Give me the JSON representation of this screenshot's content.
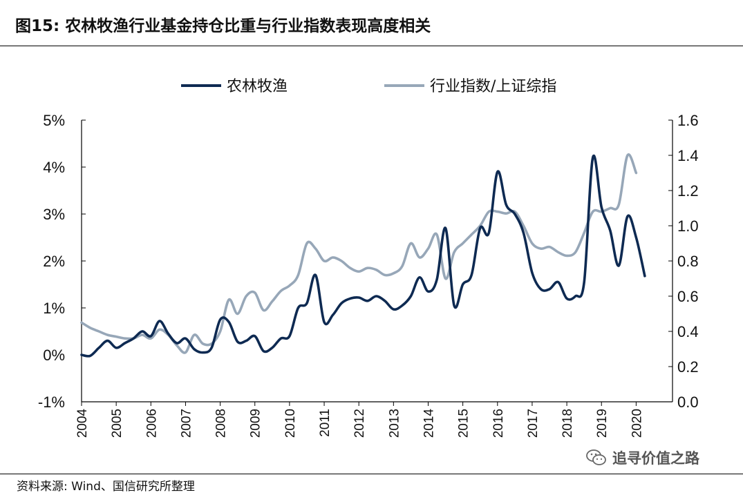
{
  "figure": {
    "title": "图15:  农林牧渔行业基金持仓比重与行业指数表现高度相关",
    "source": "资料来源: Wind、国信研究所整理",
    "watermark": "追寻价值之路",
    "watermark_icon": "wechat-icon"
  },
  "colors": {
    "series_primary": "#0e2a52",
    "series_secondary": "#97a7b8",
    "axis": "#000000"
  },
  "chart_data": {
    "type": "line",
    "legend_position": "top",
    "grid": false,
    "x_range": [
      2004.0,
      2020.75
    ],
    "x_tick_labels": [
      "2004",
      "2005",
      "2006",
      "2007",
      "2008",
      "2009",
      "2010",
      "2011",
      "2012",
      "2013",
      "2014",
      "2015",
      "2016",
      "2017",
      "2018",
      "2019",
      "2020"
    ],
    "y_left": {
      "range": [
        -1,
        5
      ],
      "tick_labels": [
        "-1%",
        "0%",
        "1%",
        "2%",
        "3%",
        "4%",
        "5%"
      ]
    },
    "y_right": {
      "range": [
        0.0,
        1.6
      ],
      "tick_labels": [
        "0.0",
        "0.2",
        "0.4",
        "0.6",
        "0.8",
        "1.0",
        "1.2",
        "1.4",
        "1.6"
      ]
    },
    "series": [
      {
        "name": "农林牧渔",
        "axis": "left",
        "points": [
          [
            2004.0,
            0.0
          ],
          [
            2004.25,
            -0.02
          ],
          [
            2004.5,
            0.15
          ],
          [
            2004.75,
            0.3
          ],
          [
            2005.0,
            0.15
          ],
          [
            2005.25,
            0.25
          ],
          [
            2005.5,
            0.35
          ],
          [
            2005.75,
            0.5
          ],
          [
            2006.0,
            0.4
          ],
          [
            2006.25,
            0.72
          ],
          [
            2006.5,
            0.45
          ],
          [
            2006.75,
            0.25
          ],
          [
            2007.0,
            0.35
          ],
          [
            2007.25,
            0.12
          ],
          [
            2007.5,
            0.05
          ],
          [
            2007.75,
            0.15
          ],
          [
            2008.0,
            0.75
          ],
          [
            2008.25,
            0.7
          ],
          [
            2008.5,
            0.28
          ],
          [
            2008.75,
            0.3
          ],
          [
            2009.0,
            0.4
          ],
          [
            2009.25,
            0.08
          ],
          [
            2009.5,
            0.15
          ],
          [
            2009.75,
            0.35
          ],
          [
            2010.0,
            0.4
          ],
          [
            2010.25,
            1.0
          ],
          [
            2010.5,
            1.1
          ],
          [
            2010.75,
            1.7
          ],
          [
            2011.0,
            0.7
          ],
          [
            2011.25,
            0.85
          ],
          [
            2011.5,
            1.1
          ],
          [
            2011.75,
            1.2
          ],
          [
            2012.0,
            1.22
          ],
          [
            2012.25,
            1.15
          ],
          [
            2012.5,
            1.25
          ],
          [
            2012.75,
            1.15
          ],
          [
            2013.0,
            0.97
          ],
          [
            2013.25,
            1.05
          ],
          [
            2013.5,
            1.25
          ],
          [
            2013.75,
            1.65
          ],
          [
            2014.0,
            1.35
          ],
          [
            2014.25,
            1.6
          ],
          [
            2014.5,
            2.7
          ],
          [
            2014.75,
            1.05
          ],
          [
            2015.0,
            1.5
          ],
          [
            2015.25,
            1.7
          ],
          [
            2015.5,
            2.7
          ],
          [
            2015.75,
            2.6
          ],
          [
            2016.0,
            3.9
          ],
          [
            2016.25,
            3.2
          ],
          [
            2016.5,
            3.0
          ],
          [
            2016.75,
            2.6
          ],
          [
            2017.0,
            1.75
          ],
          [
            2017.25,
            1.4
          ],
          [
            2017.5,
            1.4
          ],
          [
            2017.75,
            1.55
          ],
          [
            2018.0,
            1.2
          ],
          [
            2018.25,
            1.25
          ],
          [
            2018.5,
            1.55
          ],
          [
            2018.75,
            4.2
          ],
          [
            2019.0,
            3.15
          ],
          [
            2019.25,
            2.65
          ],
          [
            2019.5,
            1.9
          ],
          [
            2019.75,
            2.95
          ],
          [
            2020.0,
            2.5
          ],
          [
            2020.25,
            1.68
          ]
        ]
      },
      {
        "name": "行业指数/上证综指",
        "axis": "right",
        "points": [
          [
            2004.0,
            0.45
          ],
          [
            2004.25,
            0.42
          ],
          [
            2004.5,
            0.4
          ],
          [
            2004.75,
            0.38
          ],
          [
            2005.0,
            0.37
          ],
          [
            2005.25,
            0.36
          ],
          [
            2005.5,
            0.36
          ],
          [
            2005.75,
            0.38
          ],
          [
            2006.0,
            0.36
          ],
          [
            2006.25,
            0.41
          ],
          [
            2006.5,
            0.38
          ],
          [
            2006.75,
            0.32
          ],
          [
            2007.0,
            0.28
          ],
          [
            2007.25,
            0.38
          ],
          [
            2007.5,
            0.33
          ],
          [
            2007.75,
            0.33
          ],
          [
            2008.0,
            0.4
          ],
          [
            2008.25,
            0.58
          ],
          [
            2008.5,
            0.5
          ],
          [
            2008.75,
            0.6
          ],
          [
            2009.0,
            0.62
          ],
          [
            2009.25,
            0.52
          ],
          [
            2009.5,
            0.57
          ],
          [
            2009.75,
            0.63
          ],
          [
            2010.0,
            0.66
          ],
          [
            2010.25,
            0.72
          ],
          [
            2010.5,
            0.9
          ],
          [
            2010.75,
            0.87
          ],
          [
            2011.0,
            0.8
          ],
          [
            2011.25,
            0.82
          ],
          [
            2011.5,
            0.8
          ],
          [
            2011.75,
            0.76
          ],
          [
            2012.0,
            0.74
          ],
          [
            2012.25,
            0.76
          ],
          [
            2012.5,
            0.75
          ],
          [
            2012.75,
            0.72
          ],
          [
            2013.0,
            0.73
          ],
          [
            2013.25,
            0.77
          ],
          [
            2013.5,
            0.9
          ],
          [
            2013.75,
            0.82
          ],
          [
            2014.0,
            0.87
          ],
          [
            2014.25,
            0.95
          ],
          [
            2014.5,
            0.7
          ],
          [
            2014.75,
            0.85
          ],
          [
            2015.0,
            0.9
          ],
          [
            2015.25,
            0.95
          ],
          [
            2015.5,
            1.0
          ],
          [
            2015.75,
            1.08
          ],
          [
            2016.0,
            1.08
          ],
          [
            2016.25,
            1.07
          ],
          [
            2016.5,
            1.08
          ],
          [
            2016.75,
            1.0
          ],
          [
            2017.0,
            0.9
          ],
          [
            2017.25,
            0.87
          ],
          [
            2017.5,
            0.88
          ],
          [
            2017.75,
            0.85
          ],
          [
            2018.0,
            0.83
          ],
          [
            2018.25,
            0.85
          ],
          [
            2018.5,
            0.96
          ],
          [
            2018.75,
            1.08
          ],
          [
            2019.0,
            1.08
          ],
          [
            2019.25,
            1.1
          ],
          [
            2019.5,
            1.12
          ],
          [
            2019.75,
            1.4
          ],
          [
            2020.0,
            1.3
          ]
        ]
      }
    ]
  }
}
